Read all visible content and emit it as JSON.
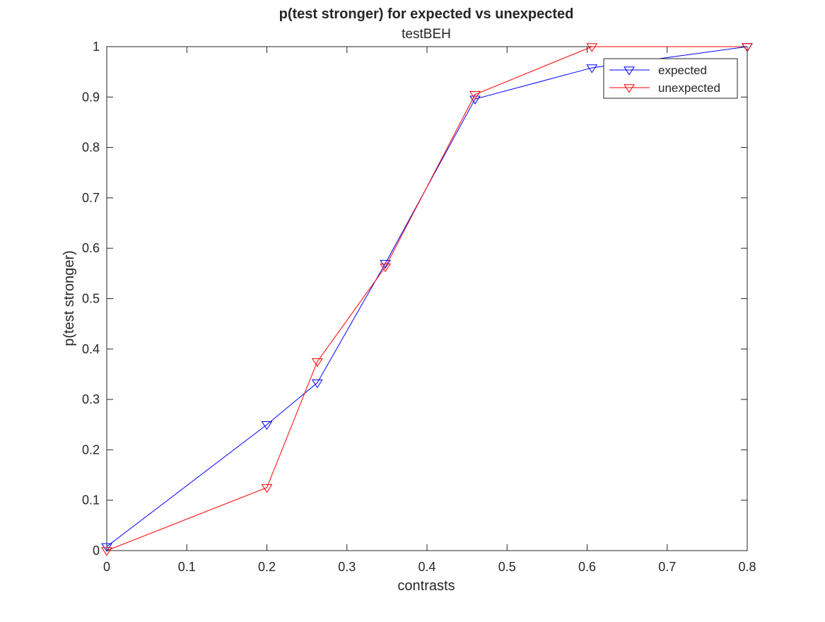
{
  "chart_data": {
    "type": "line",
    "title": "p(test stronger) for expected vs unexpected",
    "subtitle": "testBEH",
    "xlabel": "contrasts",
    "ylabel": "p(test stronger)",
    "xlim": [
      0,
      0.8
    ],
    "ylim": [
      0,
      1
    ],
    "xticks": [
      0,
      0.1,
      0.2,
      0.3,
      0.4,
      0.5,
      0.6,
      0.7,
      0.8
    ],
    "xtick_labels": [
      "0",
      "0.1",
      "0.2",
      "0.3",
      "0.4",
      "0.5",
      "0.6",
      "0.7",
      "0.8"
    ],
    "yticks": [
      0,
      0.1,
      0.2,
      0.3,
      0.4,
      0.5,
      0.6,
      0.7,
      0.8,
      0.9,
      1
    ],
    "ytick_labels": [
      "0",
      "0.1",
      "0.2",
      "0.3",
      "0.4",
      "0.5",
      "0.6",
      "0.7",
      "0.8",
      "0.9",
      "1"
    ],
    "grid": false,
    "legend_position": "top-right",
    "marker": "down-triangle",
    "series": [
      {
        "name": "expected",
        "color": "#0000ff",
        "x": [
          0,
          0.2,
          0.263,
          0.348,
          0.46,
          0.606,
          0.8
        ],
        "y": [
          0.008,
          0.25,
          0.333,
          0.57,
          0.896,
          0.958,
          1.0
        ]
      },
      {
        "name": "unexpected",
        "color": "#ff0000",
        "x": [
          0,
          0.2,
          0.263,
          0.348,
          0.46,
          0.606,
          0.8
        ],
        "y": [
          0,
          0.125,
          0.375,
          0.563,
          0.905,
          1.0,
          1.0
        ]
      }
    ]
  }
}
